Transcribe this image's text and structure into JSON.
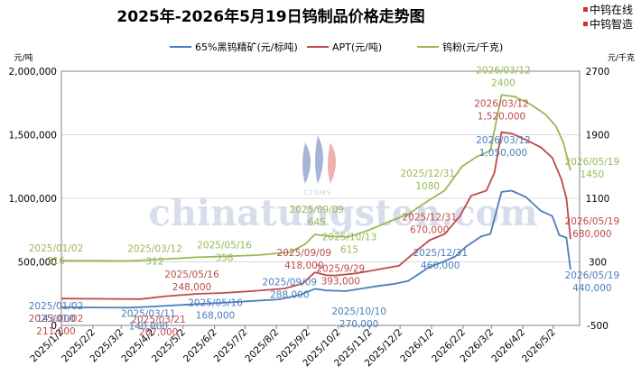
{
  "header": {
    "title": "2025年-2026年5月19日钨制品价格走势图",
    "brand_line1": "中钨在线",
    "brand_line2": "中钨智造"
  },
  "watermark": {
    "text": "chinatungsten.com",
    "sub": "CTOMS"
  },
  "colors": {
    "concentrate": "#4a7ebb",
    "apt": "#be4b48",
    "powder": "#98b954",
    "grid": "#d9d9d9",
    "axis": "#808080"
  },
  "chart_data": {
    "type": "line",
    "title": "2025年-2026年5月19日钨制品价格走势图",
    "left_unit": "元/吨",
    "right_unit": "元/千克",
    "left_axis": {
      "range": [
        0,
        2000000
      ],
      "ticks": [
        "0",
        "500,000",
        "1,000,000",
        "1,500,000",
        "2,000,000"
      ]
    },
    "right_axis": {
      "range": [
        -500,
        2700
      ],
      "ticks": [
        "-500",
        "300",
        "1100",
        "1900",
        "2700"
      ]
    },
    "x_ticks": [
      "2025/1/2",
      "2025/2/2",
      "2025/3/2",
      "2025/4/2",
      "2025/5/2",
      "2025/6/2",
      "2025/7/2",
      "2025/8/2",
      "2025/9/2",
      "2025/10/2",
      "2025/11/2",
      "2025/12/2",
      "2026/1/2",
      "2026/2/2",
      "2026/3/2",
      "2026/4/2",
      "2026/5/2"
    ],
    "grid": "horizontal",
    "legend_position": "top",
    "series": [
      {
        "name": "65%黑钨精矿(元/标吨)",
        "axis": "left",
        "points": [
          [
            "2025-01-02",
            143000
          ],
          [
            "2025-02-01",
            141000
          ],
          [
            "2025-03-11",
            140000
          ],
          [
            "2025-04-05",
            150000
          ],
          [
            "2025-05-16",
            168000
          ],
          [
            "2025-06-10",
            178000
          ],
          [
            "2025-07-05",
            190000
          ],
          [
            "2025-08-05",
            205000
          ],
          [
            "2025-08-25",
            240000
          ],
          [
            "2025-09-09",
            288000
          ],
          [
            "2025-09-20",
            275000
          ],
          [
            "2025-10-10",
            270000
          ],
          [
            "2025-10-25",
            290000
          ],
          [
            "2025-11-10",
            310000
          ],
          [
            "2025-11-25",
            325000
          ],
          [
            "2025-12-10",
            350000
          ],
          [
            "2025-12-31",
            460000
          ],
          [
            "2026-01-10",
            490000
          ],
          [
            "2026-01-25",
            540000
          ],
          [
            "2026-02-05",
            620000
          ],
          [
            "2026-02-20",
            700000
          ],
          [
            "2026-03-01",
            720000
          ],
          [
            "2026-03-12",
            1050000
          ],
          [
            "2026-03-22",
            1060000
          ],
          [
            "2026-04-05",
            1010000
          ],
          [
            "2026-04-20",
            900000
          ],
          [
            "2026-05-01",
            860000
          ],
          [
            "2026-05-08",
            710000
          ],
          [
            "2026-05-15",
            690000
          ],
          [
            "2026-05-19",
            440000
          ]
        ]
      },
      {
        "name": "APT(元/吨)",
        "axis": "left",
        "points": [
          [
            "2025-01-02",
            211000
          ],
          [
            "2025-02-10",
            209000
          ],
          [
            "2025-03-21",
            207000
          ],
          [
            "2025-04-15",
            230000
          ],
          [
            "2025-05-16",
            248000
          ],
          [
            "2025-06-10",
            255000
          ],
          [
            "2025-07-10",
            270000
          ],
          [
            "2025-08-10",
            290000
          ],
          [
            "2025-08-28",
            330000
          ],
          [
            "2025-09-09",
            418000
          ],
          [
            "2025-09-20",
            395000
          ],
          [
            "2025-09-29",
            393000
          ],
          [
            "2025-10-20",
            410000
          ],
          [
            "2025-11-10",
            440000
          ],
          [
            "2025-12-01",
            470000
          ],
          [
            "2025-12-20",
            600000
          ],
          [
            "2025-12-31",
            670000
          ],
          [
            "2026-01-15",
            720000
          ],
          [
            "2026-01-30",
            860000
          ],
          [
            "2026-02-10",
            1020000
          ],
          [
            "2026-02-25",
            1060000
          ],
          [
            "2026-03-05",
            1200000
          ],
          [
            "2026-03-12",
            1520000
          ],
          [
            "2026-03-22",
            1510000
          ],
          [
            "2026-04-05",
            1460000
          ],
          [
            "2026-04-20",
            1400000
          ],
          [
            "2026-05-01",
            1320000
          ],
          [
            "2026-05-10",
            1150000
          ],
          [
            "2026-05-15",
            1000000
          ],
          [
            "2026-05-19",
            680000
          ]
        ]
      },
      {
        "name": "钨粉(元/千克)",
        "axis": "right",
        "points": [
          [
            "2025-01-02",
            316
          ],
          [
            "2025-02-10",
            314
          ],
          [
            "2025-03-12",
            312
          ],
          [
            "2025-04-15",
            335
          ],
          [
            "2025-05-16",
            358
          ],
          [
            "2025-06-15",
            370
          ],
          [
            "2025-07-15",
            385
          ],
          [
            "2025-08-15",
            420
          ],
          [
            "2025-08-30",
            520
          ],
          [
            "2025-09-09",
            645
          ],
          [
            "2025-09-25",
            620
          ],
          [
            "2025-10-13",
            615
          ],
          [
            "2025-11-01",
            700
          ],
          [
            "2025-11-20",
            800
          ],
          [
            "2025-12-10",
            900
          ],
          [
            "2025-12-31",
            1080
          ],
          [
            "2026-01-15",
            1200
          ],
          [
            "2026-02-01",
            1500
          ],
          [
            "2026-02-15",
            1620
          ],
          [
            "2026-03-01",
            1700
          ],
          [
            "2026-03-12",
            2400
          ],
          [
            "2026-03-25",
            2380
          ],
          [
            "2026-04-10",
            2280
          ],
          [
            "2026-04-25",
            2150
          ],
          [
            "2026-05-05",
            2000
          ],
          [
            "2026-05-12",
            1800
          ],
          [
            "2026-05-19",
            1450
          ]
        ]
      }
    ],
    "annotations": [
      {
        "series": 2,
        "date": "2025-01-02",
        "value": 316,
        "lines": [
          "2025/01/02",
          "316"
        ]
      },
      {
        "series": 2,
        "date": "2025-03-12",
        "value": 312,
        "lines": [
          "2025/03/12",
          "312"
        ]
      },
      {
        "series": 2,
        "date": "2025-05-16",
        "value": 358,
        "lines": [
          "2025/05/16",
          "358"
        ]
      },
      {
        "series": 2,
        "date": "2025-09-09",
        "value": 645,
        "lines": [
          "2025/09/09",
          "645"
        ]
      },
      {
        "series": 2,
        "date": "2025-10-13",
        "value": 615,
        "lines": [
          "2025/10/13",
          "615"
        ]
      },
      {
        "series": 2,
        "date": "2025-12-31",
        "value": 1080,
        "lines": [
          "2025/12/31",
          "1080"
        ]
      },
      {
        "series": 2,
        "date": "2026-03-12",
        "value": 2400,
        "lines": [
          "2026/03/12",
          "2400"
        ]
      },
      {
        "series": 2,
        "date": "2026-05-19",
        "value": 1450,
        "lines": [
          "2026/05/19",
          "1450"
        ]
      },
      {
        "series": 1,
        "date": "2025-01-02",
        "value": 211000,
        "lines": [
          "2025/01/02",
          "211,000"
        ]
      },
      {
        "series": 1,
        "date": "2025-03-21",
        "value": 207000,
        "lines": [
          "2025/03/21",
          "207,000"
        ]
      },
      {
        "series": 1,
        "date": "2025-05-16",
        "value": 248000,
        "lines": [
          "2025/05/16",
          "248,000"
        ]
      },
      {
        "series": 1,
        "date": "2025-09-09",
        "value": 418000,
        "lines": [
          "2025/09/09",
          "418,000"
        ]
      },
      {
        "series": 1,
        "date": "2025-09-29",
        "value": 393000,
        "lines": [
          "2025/9/29",
          "393,000"
        ]
      },
      {
        "series": 1,
        "date": "2025-12-31",
        "value": 670000,
        "lines": [
          "2025/12/31",
          "670,000"
        ]
      },
      {
        "series": 1,
        "date": "2026-03-12",
        "value": 1520000,
        "lines": [
          "2026/03/12",
          "1,520,000"
        ]
      },
      {
        "series": 1,
        "date": "2026-05-19",
        "value": 680000,
        "lines": [
          "2026/05/19",
          "680,000"
        ]
      },
      {
        "series": 0,
        "date": "2025-01-02",
        "value": 143000,
        "lines": [
          "2025/01/02",
          "143,000"
        ]
      },
      {
        "series": 0,
        "date": "2025-03-11",
        "value": 140000,
        "lines": [
          "2025/03/11",
          "140,000"
        ]
      },
      {
        "series": 0,
        "date": "2025-05-16",
        "value": 168000,
        "lines": [
          "2025/05/16",
          "168,000"
        ]
      },
      {
        "series": 0,
        "date": "2025-09-09",
        "value": 288000,
        "lines": [
          "2025/09/09",
          "288,000"
        ]
      },
      {
        "series": 0,
        "date": "2025-10-10",
        "value": 270000,
        "lines": [
          "2025/10/10",
          "270,000"
        ]
      },
      {
        "series": 0,
        "date": "2025-12-31",
        "value": 460000,
        "lines": [
          "2025/12/31",
          "460,000"
        ]
      },
      {
        "series": 0,
        "date": "2026-03-12",
        "value": 1050000,
        "lines": [
          "2026/03/12",
          "1,050,000"
        ]
      },
      {
        "series": 0,
        "date": "2026-05-19",
        "value": 440000,
        "lines": [
          "2026/05/19",
          "440,000"
        ]
      }
    ]
  }
}
